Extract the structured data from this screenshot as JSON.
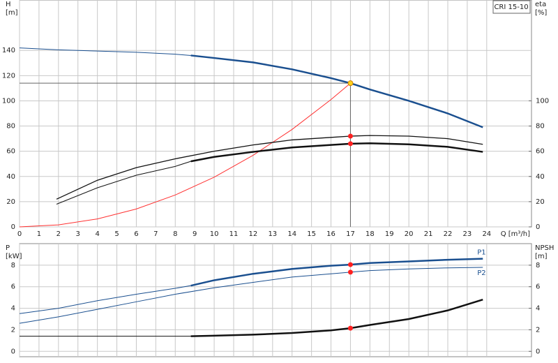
{
  "chart_data": [
    {
      "type": "line",
      "title": "CRI 15-10",
      "y_label": "H",
      "y_unit": "[m]",
      "y2_label": "eta",
      "y2_unit": "[%]",
      "x_label": "Q [m³/h]",
      "xlim": [
        0,
        26.3
      ],
      "ylim": [
        0,
        180
      ],
      "y2lim": [
        0,
        180
      ],
      "xticks": [
        0,
        1,
        2,
        3,
        4,
        5,
        6,
        7,
        8,
        9,
        10,
        11,
        12,
        13,
        14,
        15,
        16,
        17,
        18,
        19,
        20,
        21,
        22,
        23,
        24
      ],
      "yticks": [
        0,
        20,
        40,
        60,
        80,
        100,
        120,
        140
      ],
      "y2ticks": [
        0,
        20,
        40,
        60,
        80,
        100
      ],
      "grid": true,
      "series": [
        {
          "color": "#1a4f8f",
          "width": 1,
          "x": [
            0,
            2,
            4,
            6,
            8,
            8.8
          ],
          "values": [
            142,
            140.5,
            139.5,
            138.5,
            137,
            136
          ]
        },
        {
          "color": "#1a4f8f",
          "width": 2.5,
          "x": [
            8.8,
            10,
            12,
            14,
            16,
            17,
            18,
            20,
            22,
            23.8
          ],
          "values": [
            136,
            134,
            130.5,
            125,
            118,
            114,
            109,
            100,
            90,
            79
          ]
        },
        {
          "color": "#ff3030",
          "width": 1,
          "x": [
            0,
            2,
            4,
            6,
            8,
            10,
            12,
            14,
            16,
            17
          ],
          "values": [
            0,
            1.6,
            6.3,
            14.2,
            25.3,
            39.4,
            56.8,
            77.3,
            101,
            114
          ]
        },
        {
          "color": "#111111",
          "width": 1.3,
          "axis": "y2",
          "x": [
            1.9,
            4,
            6,
            8,
            10,
            12,
            14,
            16,
            17,
            18,
            20,
            22,
            23.8
          ],
          "values": [
            22,
            37,
            47,
            54,
            60,
            65,
            69,
            71,
            72,
            72.5,
            72,
            70,
            65.5
          ]
        },
        {
          "color": "#111111",
          "width": 1,
          "axis": "y2",
          "x": [
            1.9,
            4,
            6,
            8,
            8.8
          ],
          "values": [
            18,
            31,
            41,
            48,
            52
          ]
        },
        {
          "color": "#111111",
          "width": 2.5,
          "axis": "y2",
          "x": [
            8.8,
            10,
            12,
            14,
            16,
            17,
            18,
            20,
            22,
            23.8
          ],
          "values": [
            52,
            55.5,
            59.5,
            63,
            65,
            66,
            66.3,
            65.5,
            63.5,
            59.5
          ]
        }
      ],
      "crosshair": {
        "x": 17,
        "y": 114
      },
      "points": [
        {
          "x": 17,
          "y": 114,
          "color": "#ffd21f"
        },
        {
          "x": 17,
          "y": 72,
          "color": "#ff2020"
        },
        {
          "x": 17,
          "y": 66,
          "color": "#ff2020"
        }
      ]
    },
    {
      "type": "line",
      "y_label": "P",
      "y_unit": "[kW]",
      "y2_label": "NPSH",
      "y2_unit": "[m]",
      "xlim": [
        0,
        26.3
      ],
      "ylim": [
        -0.5,
        10
      ],
      "y2lim": [
        -0.5,
        10
      ],
      "xticks": [
        0,
        1,
        2,
        3,
        4,
        5,
        6,
        7,
        8,
        9,
        10,
        11,
        12,
        13,
        14,
        15,
        16,
        17,
        18,
        19,
        20,
        21,
        22,
        23,
        24
      ],
      "show_xtick_labels": false,
      "yticks": [
        0,
        2,
        4,
        6,
        8
      ],
      "y2ticks": [
        0,
        2,
        4,
        6,
        8
      ],
      "grid": true,
      "series": [
        {
          "color": "#1a4f8f",
          "width": 1,
          "x": [
            0,
            2,
            4,
            6,
            8,
            8.8
          ],
          "values": [
            3.5,
            4.0,
            4.7,
            5.3,
            5.85,
            6.1
          ]
        },
        {
          "name": "P1",
          "color": "#1a4f8f",
          "width": 2.5,
          "x": [
            8.8,
            10,
            12,
            14,
            16,
            17,
            18,
            20,
            22,
            23.8
          ],
          "values": [
            6.1,
            6.6,
            7.2,
            7.65,
            7.95,
            8.05,
            8.2,
            8.35,
            8.5,
            8.6
          ]
        },
        {
          "name": "P2",
          "color": "#1a4f8f",
          "width": 1,
          "x": [
            0,
            2,
            4,
            6,
            8,
            10,
            12,
            14,
            16,
            17,
            18,
            20,
            22,
            23.8
          ],
          "values": [
            2.6,
            3.2,
            3.9,
            4.6,
            5.3,
            5.9,
            6.4,
            6.9,
            7.2,
            7.35,
            7.5,
            7.65,
            7.75,
            7.8
          ]
        },
        {
          "color": "#111111",
          "width": 1,
          "axis": "y2",
          "x": [
            0,
            8.8
          ],
          "values": [
            1.4,
            1.4
          ]
        },
        {
          "color": "#111111",
          "width": 2.5,
          "axis": "y2",
          "x": [
            8.8,
            10,
            12,
            14,
            16,
            17,
            18,
            20,
            22,
            23.8
          ],
          "values": [
            1.4,
            1.45,
            1.55,
            1.7,
            1.95,
            2.15,
            2.45,
            3.0,
            3.8,
            4.8
          ]
        }
      ],
      "points": [
        {
          "x": 17,
          "y": 8.05,
          "color": "#ff2020"
        },
        {
          "x": 17,
          "y": 7.35,
          "color": "#ff2020"
        },
        {
          "x": 17,
          "y": 2.15,
          "color": "#ff2020"
        }
      ]
    }
  ]
}
